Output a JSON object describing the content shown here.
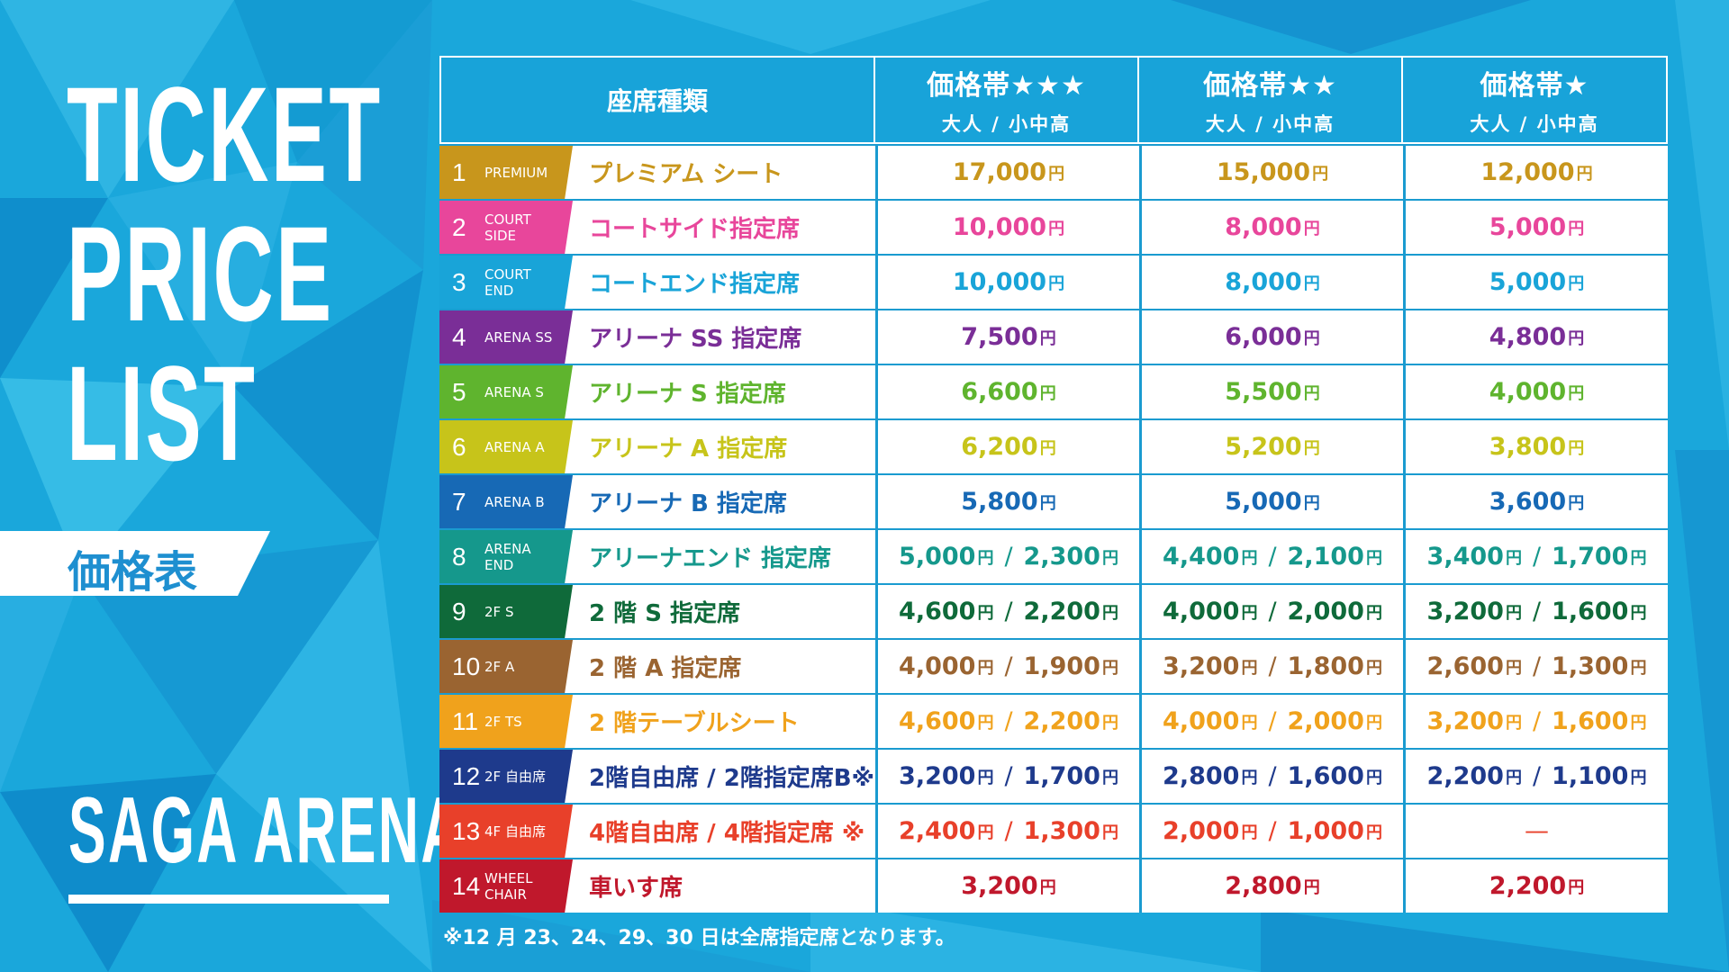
{
  "title_lines": [
    "TICKET",
    "PRICE",
    "LIST"
  ],
  "jp_title": "価格表",
  "venue": "SAGA ARENA",
  "header": {
    "seat_type": "座席種類",
    "tiers": [
      {
        "label": "価格帯★★★",
        "sub": "大人 / 小中高"
      },
      {
        "label": "価格帯★★",
        "sub": "大人 / 小中高"
      },
      {
        "label": "価格帯★",
        "sub": "大人 / 小中高"
      }
    ]
  },
  "yen": "円",
  "dash": "—",
  "rows": [
    {
      "num": "1",
      "code": [
        "PREMIUM"
      ],
      "name": "プレミアム シート",
      "color": "#c8961c",
      "prices": [
        [
          "17,000"
        ],
        [
          "15,000"
        ],
        [
          "12,000"
        ]
      ]
    },
    {
      "num": "2",
      "code": [
        "COURT",
        "SIDE"
      ],
      "name": "コートサイド指定席",
      "color": "#e8469b",
      "prices": [
        [
          "10,000"
        ],
        [
          "8,000"
        ],
        [
          "5,000"
        ]
      ]
    },
    {
      "num": "3",
      "code": [
        "COURT",
        "END"
      ],
      "name": "コートエンド指定席",
      "color": "#19a4d8",
      "prices": [
        [
          "10,000"
        ],
        [
          "8,000"
        ],
        [
          "5,000"
        ]
      ]
    },
    {
      "num": "4",
      "code": [
        "ARENA SS"
      ],
      "name": "アリーナ SS 指定席",
      "color": "#7a2e97",
      "prices": [
        [
          "7,500"
        ],
        [
          "6,000"
        ],
        [
          "4,800"
        ]
      ]
    },
    {
      "num": "5",
      "code": [
        "ARENA S"
      ],
      "name": "アリーナ S 指定席",
      "color": "#5fb42e",
      "prices": [
        [
          "6,600"
        ],
        [
          "5,500"
        ],
        [
          "4,000"
        ]
      ]
    },
    {
      "num": "6",
      "code": [
        "ARENA A"
      ],
      "name": "アリーナ A 指定席",
      "color": "#c7c41a",
      "prices": [
        [
          "6,200"
        ],
        [
          "5,200"
        ],
        [
          "3,800"
        ]
      ]
    },
    {
      "num": "7",
      "code": [
        "ARENA B"
      ],
      "name": "アリーナ B 指定席",
      "color": "#1769b5",
      "prices": [
        [
          "5,800"
        ],
        [
          "5,000"
        ],
        [
          "3,600"
        ]
      ]
    },
    {
      "num": "8",
      "code": [
        "ARENA",
        "END"
      ],
      "name": "アリーナエンド 指定席",
      "color": "#15988c",
      "prices": [
        [
          "5,000",
          "2,300"
        ],
        [
          "4,400",
          "2,100"
        ],
        [
          "3,400",
          "1,700"
        ]
      ]
    },
    {
      "num": "9",
      "code": [
        "2F S"
      ],
      "name": "2 階 S 指定席",
      "color": "#0f6a3a",
      "prices": [
        [
          "4,600",
          "2,200"
        ],
        [
          "4,000",
          "2,000"
        ],
        [
          "3,200",
          "1,600"
        ]
      ]
    },
    {
      "num": "10",
      "code": [
        "2F A"
      ],
      "name": "2 階 A 指定席",
      "color": "#9a6431",
      "prices": [
        [
          "4,000",
          "1,900"
        ],
        [
          "3,200",
          "1,800"
        ],
        [
          "2,600",
          "1,300"
        ]
      ]
    },
    {
      "num": "11",
      "code": [
        "2F TS"
      ],
      "name": "2 階テーブルシート",
      "color": "#f0a21c",
      "prices": [
        [
          "4,600",
          "2,200"
        ],
        [
          "4,000",
          "2,000"
        ],
        [
          "3,200",
          "1,600"
        ]
      ]
    },
    {
      "num": "12",
      "code": [
        "2F 自由席"
      ],
      "name": "2階自由席 / 2階指定席B※",
      "color": "#1e3a8c",
      "prices": [
        [
          "3,200",
          "1,700"
        ],
        [
          "2,800",
          "1,600"
        ],
        [
          "2,200",
          "1,100"
        ]
      ]
    },
    {
      "num": "13",
      "code": [
        "4F 自由席"
      ],
      "name": "4階自由席 / 4階指定席 ※",
      "color": "#e8402a",
      "prices": [
        [
          "2,400",
          "1,300"
        ],
        [
          "2,000",
          "1,000"
        ],
        []
      ]
    },
    {
      "num": "14",
      "code": [
        "WHEEL",
        "CHAIR"
      ],
      "name": "車いす席",
      "color": "#c0182c",
      "prices": [
        [
          "3,200"
        ],
        [
          "2,800"
        ],
        [
          "2,200"
        ]
      ]
    }
  ],
  "footnote": "※12 月 23、24、29、30 日は全席指定席となります。",
  "colors": {
    "background": "#1aa7db",
    "header": "#18a3d9",
    "white": "#ffffff"
  }
}
